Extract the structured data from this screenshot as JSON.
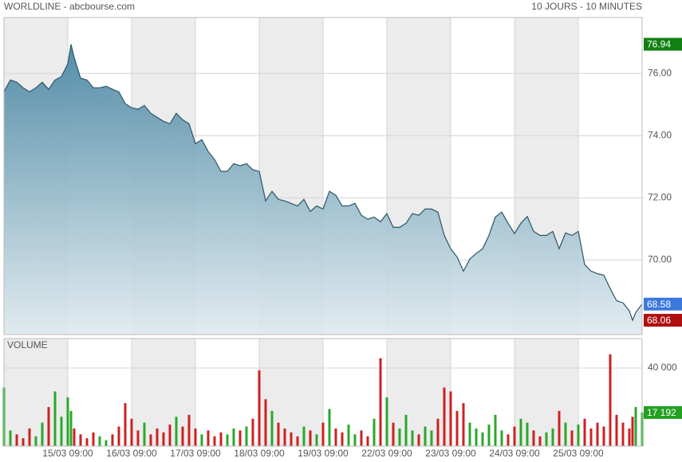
{
  "chart_data": [
    {
      "type": "area",
      "title": "WORLDLINE - abcbourse.com",
      "subtitle": "10 JOURS - 10 MINUTES",
      "x": [
        0,
        0.1,
        0.2,
        0.3,
        0.4,
        0.5,
        0.6,
        0.7,
        0.8,
        0.9,
        1.0,
        1.05,
        1.1,
        1.2,
        1.3,
        1.4,
        1.5,
        1.6,
        1.7,
        1.8,
        1.9,
        2.0,
        2.1,
        2.2,
        2.3,
        2.4,
        2.5,
        2.6,
        2.7,
        2.8,
        2.9,
        3.0,
        3.1,
        3.2,
        3.3,
        3.4,
        3.5,
        3.6,
        3.7,
        3.8,
        3.9,
        4.0,
        4.1,
        4.2,
        4.3,
        4.4,
        4.5,
        4.6,
        4.7,
        4.8,
        4.9,
        5.0,
        5.1,
        5.2,
        5.3,
        5.4,
        5.5,
        5.6,
        5.7,
        5.8,
        5.9,
        6.0,
        6.1,
        6.2,
        6.3,
        6.4,
        6.5,
        6.6,
        6.7,
        6.8,
        6.9,
        7.0,
        7.1,
        7.2,
        7.3,
        7.4,
        7.5,
        7.6,
        7.7,
        7.8,
        7.9,
        8.0,
        8.1,
        8.2,
        8.3,
        8.4,
        8.5,
        8.6,
        8.7,
        8.8,
        8.9,
        9.0,
        9.1,
        9.2,
        9.3,
        9.4,
        9.5,
        9.6,
        9.7,
        9.8,
        9.85,
        9.9,
        10.0
      ],
      "values": [
        75.41,
        75.79,
        75.72,
        75.54,
        75.41,
        75.54,
        75.72,
        75.49,
        75.79,
        75.9,
        76.31,
        76.94,
        76.51,
        75.85,
        75.79,
        75.54,
        75.54,
        75.59,
        75.49,
        75.41,
        75.03,
        74.9,
        74.85,
        74.97,
        74.72,
        74.59,
        74.46,
        74.38,
        74.72,
        74.51,
        74.38,
        73.74,
        73.87,
        73.49,
        73.23,
        72.85,
        72.85,
        73.1,
        73.03,
        73.1,
        72.9,
        72.85,
        71.9,
        72.21,
        71.95,
        71.9,
        71.82,
        71.74,
        71.95,
        71.56,
        71.74,
        71.64,
        72.21,
        72.08,
        71.74,
        71.74,
        71.82,
        71.44,
        71.31,
        71.38,
        71.23,
        71.49,
        71.05,
        71.05,
        71.18,
        71.49,
        71.44,
        71.64,
        71.64,
        71.54,
        70.79,
        70.36,
        70.1,
        69.64,
        70.03,
        70.21,
        70.36,
        70.79,
        71.38,
        71.54,
        71.18,
        70.85,
        71.18,
        71.4,
        70.92,
        70.79,
        70.79,
        70.92,
        70.36,
        70.87,
        70.79,
        70.92,
        69.85,
        69.64,
        69.56,
        69.51,
        69.08,
        68.69,
        68.62,
        68.36,
        68.06,
        68.31,
        68.58
      ],
      "color": "#2e5566",
      "xlim": [
        0,
        10
      ],
      "ylim": [
        67.6,
        77.8
      ],
      "yticks": [
        {
          "value": 70,
          "label": "70.00"
        },
        {
          "value": 72,
          "label": "72.00"
        },
        {
          "value": 74,
          "label": "74.00"
        },
        {
          "value": 76,
          "label": "76.00"
        }
      ],
      "markers": [
        {
          "value": 76.94,
          "color": "#128012"
        },
        {
          "value": 68.58,
          "color": "#3b78dd"
        },
        {
          "value": 68.06,
          "color": "#b00f0f"
        }
      ]
    },
    {
      "type": "bar",
      "title": "VOLUME",
      "x": [
        0,
        0.1,
        0.2,
        0.3,
        0.4,
        0.5,
        0.6,
        0.7,
        0.8,
        0.9,
        1.0,
        1.05,
        1.1,
        1.2,
        1.3,
        1.4,
        1.5,
        1.6,
        1.7,
        1.8,
        1.9,
        2.0,
        2.1,
        2.2,
        2.3,
        2.4,
        2.5,
        2.6,
        2.7,
        2.8,
        2.9,
        3.0,
        3.1,
        3.2,
        3.3,
        3.4,
        3.5,
        3.6,
        3.7,
        3.8,
        3.9,
        4.0,
        4.1,
        4.2,
        4.3,
        4.4,
        4.5,
        4.6,
        4.7,
        4.8,
        4.9,
        5.0,
        5.1,
        5.2,
        5.3,
        5.4,
        5.5,
        5.6,
        5.7,
        5.8,
        5.9,
        6.0,
        6.1,
        6.2,
        6.3,
        6.4,
        6.5,
        6.6,
        6.7,
        6.8,
        6.9,
        7.0,
        7.1,
        7.2,
        7.3,
        7.4,
        7.5,
        7.6,
        7.7,
        7.8,
        7.9,
        8.0,
        8.1,
        8.2,
        8.3,
        8.4,
        8.5,
        8.6,
        8.7,
        8.8,
        8.9,
        9.0,
        9.1,
        9.2,
        9.3,
        9.4,
        9.5,
        9.6,
        9.7,
        9.8,
        9.85,
        9.9,
        10.0
      ],
      "values": [
        30000,
        8000,
        6000,
        4000,
        9000,
        5000,
        12000,
        20000,
        28000,
        15000,
        25000,
        18000,
        9000,
        6000,
        4000,
        7000,
        5000,
        3000,
        6000,
        10000,
        22000,
        14000,
        8000,
        12000,
        6000,
        9000,
        7000,
        11000,
        15000,
        10000,
        16000,
        9000,
        6000,
        8000,
        5000,
        7000,
        6000,
        9000,
        8000,
        10000,
        14000,
        38800,
        24000,
        18000,
        12000,
        9000,
        7000,
        5000,
        10000,
        8000,
        6000,
        12000,
        19000,
        9000,
        7000,
        11000,
        6000,
        8000,
        5000,
        14000,
        45000,
        25000,
        12000,
        9000,
        16000,
        8000,
        6000,
        10000,
        8000,
        14000,
        30000,
        28000,
        18000,
        22000,
        12000,
        9000,
        7000,
        11000,
        16000,
        8000,
        6000,
        10000,
        14000,
        12000,
        8000,
        5000,
        7000,
        9000,
        18000,
        12000,
        8000,
        11000,
        14000,
        9000,
        12000,
        10000,
        47000,
        16000,
        12000,
        9000,
        15000,
        20000,
        17192
      ],
      "up_color": "#2aa82a",
      "down_color": "#cc2222",
      "title_color": "#3aa63a",
      "xlim": [
        0,
        10
      ],
      "ylim": [
        0,
        55100
      ],
      "yticks": [
        {
          "value": 40000,
          "label": "40 000"
        }
      ],
      "xticks": [
        {
          "value": 1,
          "label": "15/03 09:00"
        },
        {
          "value": 2,
          "label": "16/03 09:00"
        },
        {
          "value": 3,
          "label": "17/03 09:00"
        },
        {
          "value": 4,
          "label": "18/03 09:00"
        },
        {
          "value": 5,
          "label": "19/03 09:00"
        },
        {
          "value": 6,
          "label": "22/03 09:00"
        },
        {
          "value": 7,
          "label": "23/03 09:00"
        },
        {
          "value": 8,
          "label": "24/03 09:00"
        },
        {
          "value": 9,
          "label": "25/03 09:00"
        }
      ],
      "markers": [
        {
          "value": 17192,
          "label": "17 192",
          "color": "#22a022"
        }
      ]
    }
  ]
}
